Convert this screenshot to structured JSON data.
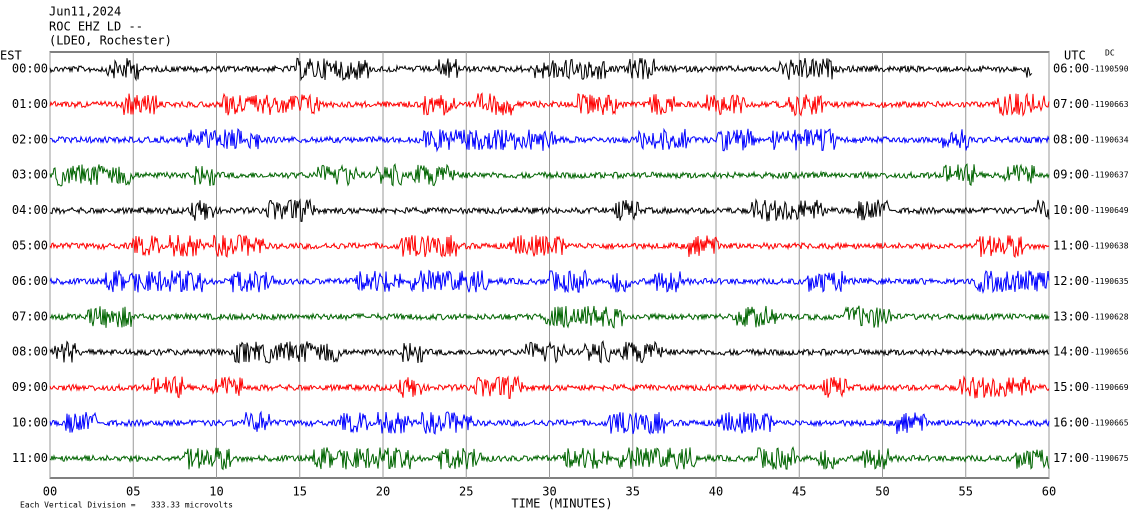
{
  "header": {
    "date": "Jun11,2024",
    "station": "ROC EHZ LD --",
    "location": "(LDEO, Rochester)",
    "left_zone": "EST",
    "right_zone": "UTC",
    "dc_label": "DC"
  },
  "rows": [
    {
      "est": "00:00",
      "utc": "06:00",
      "dc": "-1190590",
      "color": "#000000"
    },
    {
      "est": "01:00",
      "utc": "07:00",
      "dc": "-1190663",
      "color": "#ff0000"
    },
    {
      "est": "02:00",
      "utc": "08:00",
      "dc": "-1190634",
      "color": "#0000ff"
    },
    {
      "est": "03:00",
      "utc": "09:00",
      "dc": "-1190637",
      "color": "#006400"
    },
    {
      "est": "04:00",
      "utc": "10:00",
      "dc": "-1190649",
      "color": "#000000"
    },
    {
      "est": "05:00",
      "utc": "11:00",
      "dc": "-1190638",
      "color": "#ff0000"
    },
    {
      "est": "06:00",
      "utc": "12:00",
      "dc": "-1190635",
      "color": "#0000ff"
    },
    {
      "est": "07:00",
      "utc": "13:00",
      "dc": "-1190628",
      "color": "#006400"
    },
    {
      "est": "08:00",
      "utc": "14:00",
      "dc": "-1190656",
      "color": "#000000"
    },
    {
      "est": "09:00",
      "utc": "15:00",
      "dc": "-1190669",
      "color": "#ff0000"
    },
    {
      "est": "10:00",
      "utc": "16:00",
      "dc": "-1190665",
      "color": "#0000ff"
    },
    {
      "est": "11:00",
      "utc": "17:00",
      "dc": "-1190675",
      "color": "#006400"
    }
  ],
  "xaxis": {
    "label": "TIME (MINUTES)",
    "lim": [
      0,
      60
    ],
    "ticks": [
      {
        "value": 0,
        "label": "00"
      },
      {
        "value": 5,
        "label": "05"
      },
      10,
      15,
      20,
      25,
      30,
      35,
      40,
      45,
      50,
      55,
      60
    ]
  },
  "footer": {
    "scale": "Each Vertical Division =",
    "microvolts": "333.33 microvolts"
  }
}
